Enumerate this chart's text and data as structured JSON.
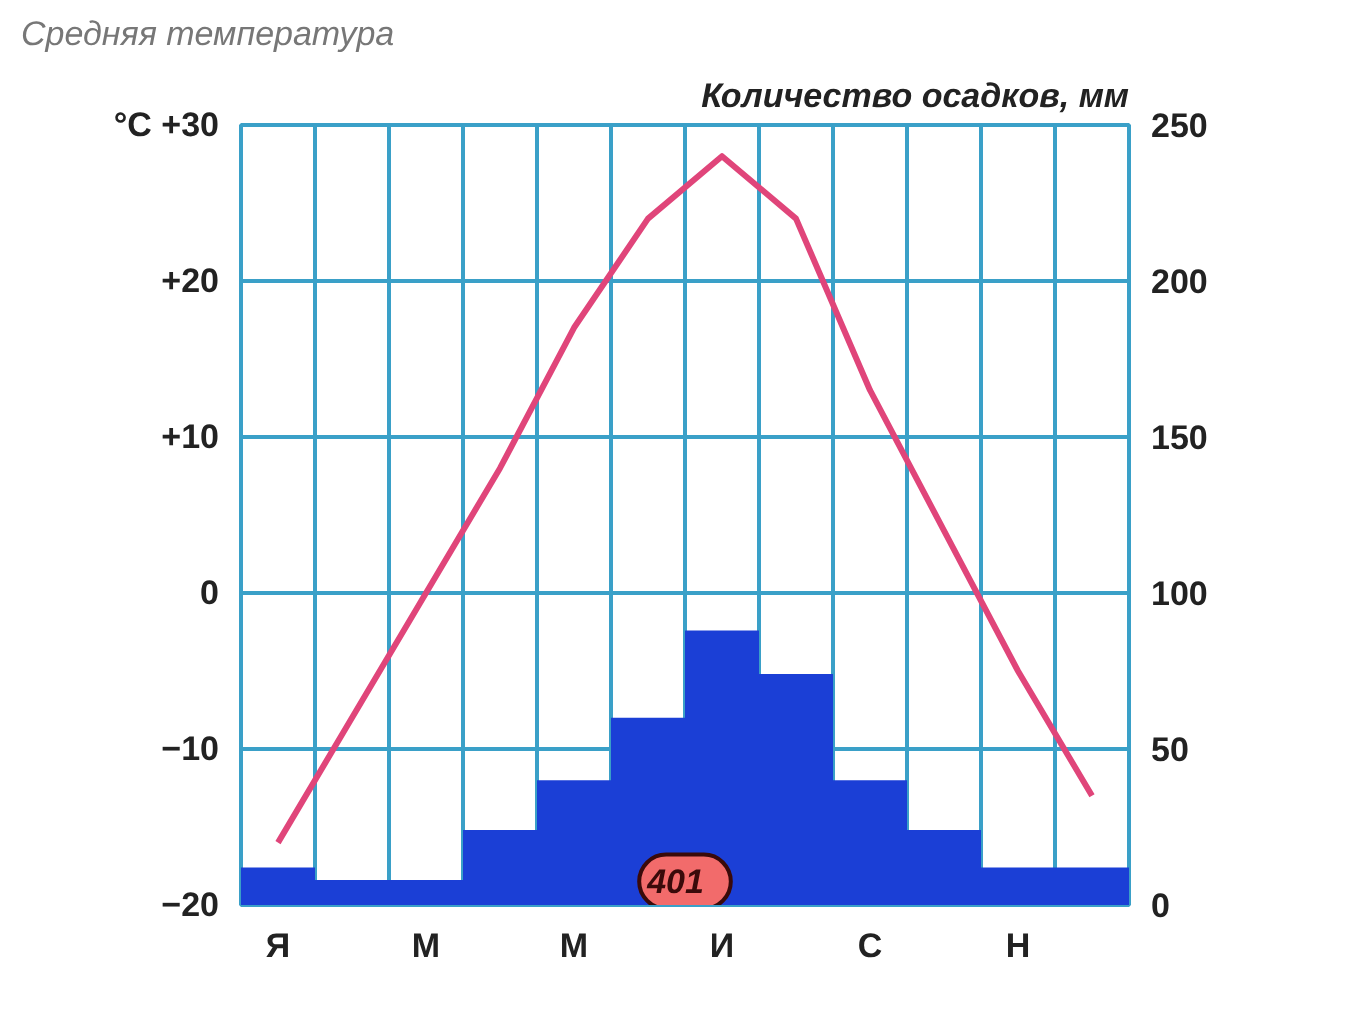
{
  "chart_data": {
    "type": "bar",
    "ylabel": "Средняя температура",
    "y2label": "Количество осадков, мм",
    "categories": [
      "Я",
      null,
      "М",
      null,
      "М",
      null,
      "И",
      null,
      "С",
      null,
      "Н",
      null
    ],
    "series": [
      {
        "axis": "y2",
        "color": "#1b3fd6",
        "values": [
          12,
          8,
          8,
          24,
          40,
          60,
          88,
          74,
          40,
          24,
          12,
          12
        ]
      },
      {
        "type": "line",
        "axis": "y",
        "color": "#e0457a",
        "values": [
          -16,
          -8,
          0,
          8,
          17,
          24,
          28,
          24,
          13,
          4,
          -5,
          -13
        ]
      }
    ],
    "ylim": [
      -20,
      30
    ],
    "yticks": [
      {
        "value": 30,
        "label": "°C +30"
      },
      {
        "value": 20,
        "label": "+20"
      },
      {
        "value": 10,
        "label": "+10"
      },
      0,
      -10,
      -20
    ],
    "y2lim": [
      0,
      250
    ],
    "y2ticks": [
      0,
      50,
      100,
      150,
      200,
      250
    ],
    "grid": true,
    "annotations": [
      "401"
    ]
  }
}
